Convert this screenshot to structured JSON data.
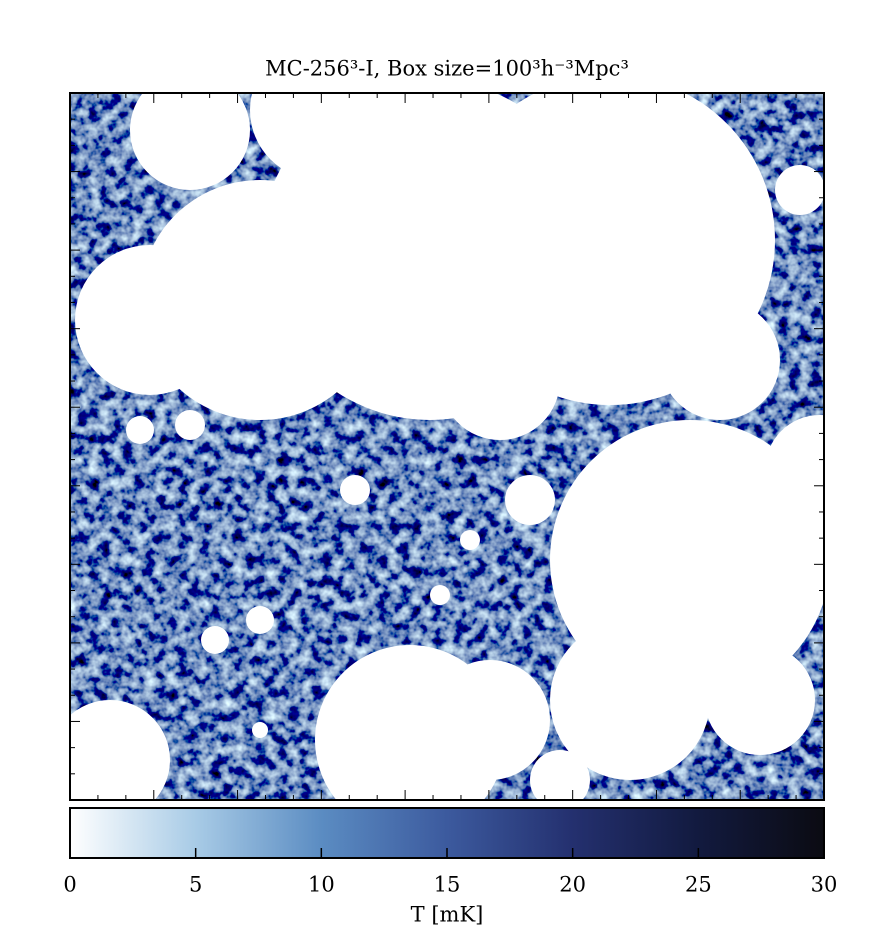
{
  "chart_data": {
    "type": "heatmap",
    "title": "MC-256³-I, Box size=100³h⁻³Mpc³",
    "colorbar": {
      "label": "T [mK]",
      "lim": [
        0,
        30
      ],
      "ticks": [
        0,
        5,
        10,
        15,
        20,
        25,
        30
      ],
      "colors": [
        "#ffffff",
        "#a8cbe6",
        "#5b8cc2",
        "#3c5a9e",
        "#24306f",
        "#121a3f",
        "#0b0b12"
      ]
    }
  }
}
